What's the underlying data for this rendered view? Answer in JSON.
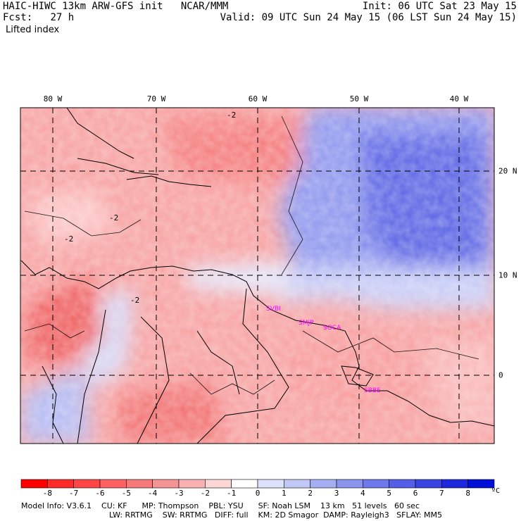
{
  "header": {
    "model_title": "HAIC-HIWC 13km ARW-GFS init",
    "org": "NCAR/MMM",
    "fcst_label": "Fcst:",
    "fcst_hours": "27 h",
    "init_text": "Init: 06 UTC Sat 23 May 15",
    "valid_text": "Valid: 09 UTC Sun 24 May 15 (06 LST Sun 24 May 15)",
    "field_name": "Lifted index"
  },
  "map": {
    "longitude_labels": [
      "80 W",
      "70 W",
      "60 W",
      "50 W",
      "40 W"
    ],
    "latitude_labels": [
      "20 N",
      "10 N",
      "0"
    ],
    "contour_labels": [
      "-2",
      "-2",
      "-2",
      "-2"
    ],
    "station_labels": [
      "SVBI",
      "SMJP",
      "SOCA",
      "SBBE"
    ],
    "station_color": "#ff00ff"
  },
  "colorbar": {
    "tick_labels": [
      "-8",
      "-7",
      "-6",
      "-5",
      "-4",
      "-3",
      "-2",
      "-1",
      "0",
      "1",
      "2",
      "3",
      "4",
      "5",
      "6",
      "7",
      "8"
    ],
    "unit": "ºC",
    "colors": [
      "#ff0000",
      "#ff2a2a",
      "#ff4545",
      "#ff6060",
      "#f77a7a",
      "#f59494",
      "#f9b2b2",
      "#fdd6d6",
      "#ffffff",
      "#dde2fb",
      "#c2c8f6",
      "#a6aef2",
      "#8a94ee",
      "#6e78ea",
      "#545ee6",
      "#3a44e2",
      "#2028de",
      "#0010d8"
    ]
  },
  "model_info": {
    "line1": "Model Info: V3.6.1    CU: KF      MP: Thompson    PBL: YSU      SF: Noah LSM    13 km   51 levels   60 sec",
    "line2": "LW: RRTMG    SW: RRTMG   DIFF: full    KM: 2D Smagor  DAMP: Rayleigh3   SFLAY: MM5"
  }
}
